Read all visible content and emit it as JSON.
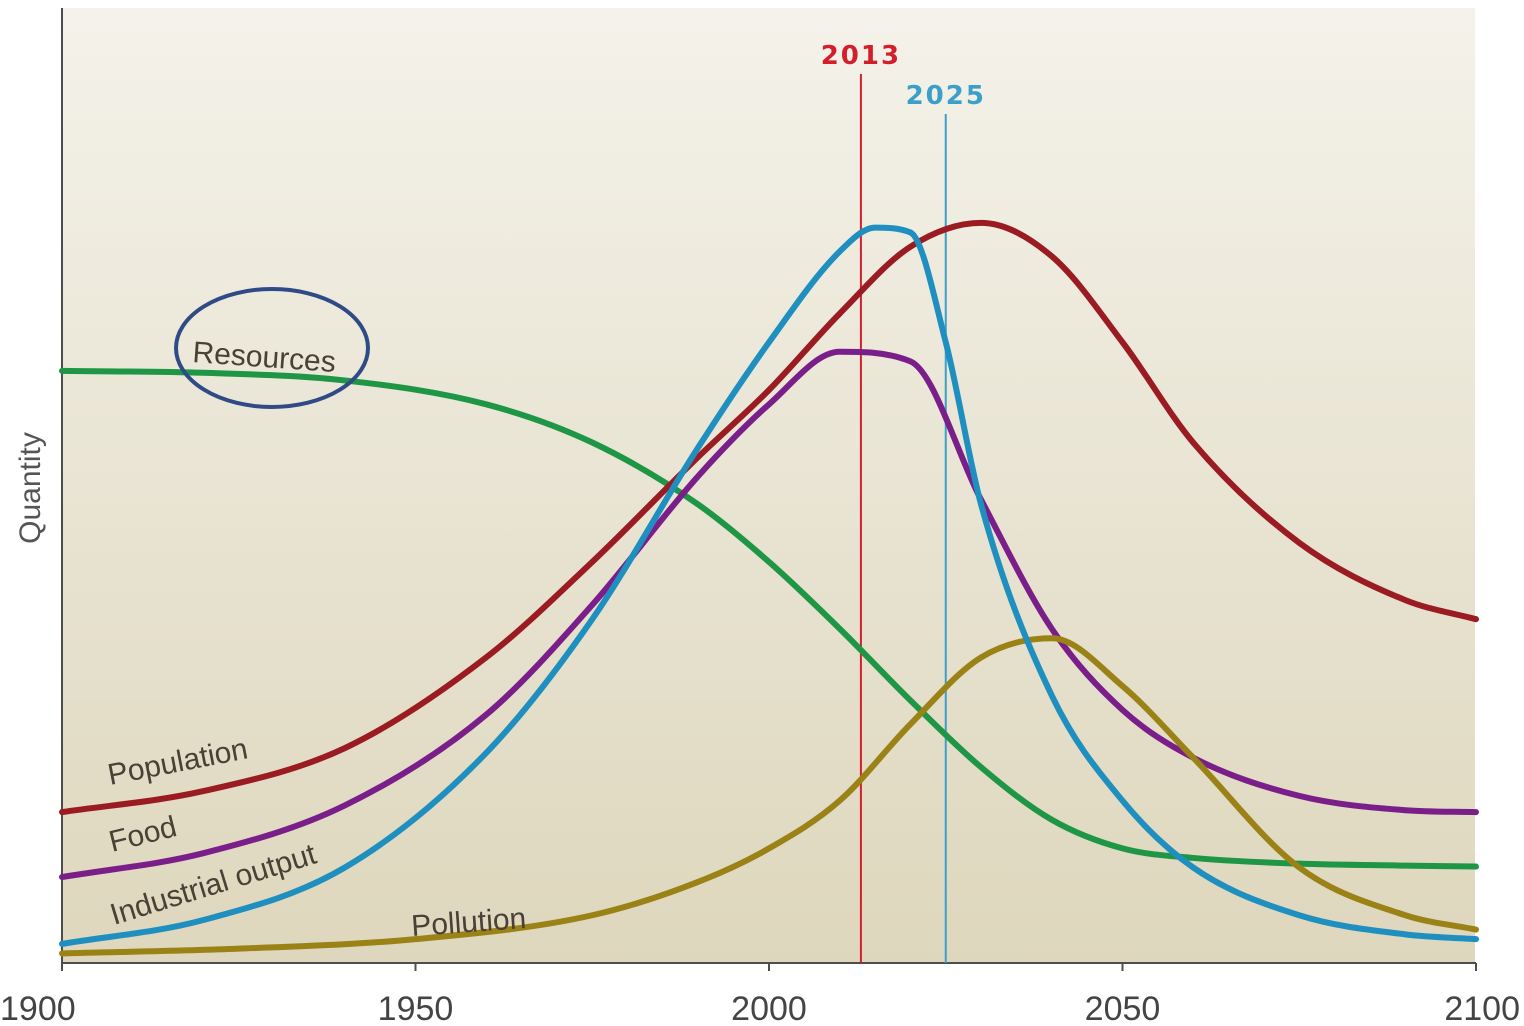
{
  "chart_data": {
    "type": "line",
    "title": "",
    "xlabel": "",
    "ylabel": "Quantity",
    "xlim": [
      1900,
      2100
    ],
    "ylim": [
      0,
      100
    ],
    "x_ticks": [
      "1900",
      "1950",
      "2000",
      "2050",
      "2100"
    ],
    "grid": false,
    "series": [
      {
        "name": "Resources",
        "color": "#1e9645",
        "x": [
          1900,
          1920,
          1940,
          1960,
          1975,
          1990,
          2000,
          2010,
          2020,
          2030,
          2040,
          2050,
          2060,
          2075,
          2090,
          2100
        ],
        "y": [
          62,
          61.8,
          61,
          58.5,
          54.5,
          48,
          42,
          35,
          27.5,
          20.5,
          15,
          12,
          11,
          10.4,
          10.2,
          10.1
        ]
      },
      {
        "name": "Population",
        "color": "#9b1b23",
        "x": [
          1900,
          1920,
          1940,
          1960,
          1975,
          1990,
          2000,
          2010,
          2020,
          2030,
          2040,
          2050,
          2060,
          2075,
          2090,
          2100
        ],
        "y": [
          15.8,
          18,
          22.5,
          32,
          42,
          53,
          60,
          68,
          75,
          77.5,
          74,
          65,
          54.5,
          44,
          38,
          36
        ]
      },
      {
        "name": "Food",
        "color": "#7a1f89",
        "x": [
          1900,
          1920,
          1940,
          1960,
          1975,
          1990,
          2000,
          2010,
          2020,
          2030,
          2040,
          2050,
          2060,
          2075,
          2090,
          2100
        ],
        "y": [
          9,
          11.5,
          16.5,
          26,
          37.5,
          51,
          58.5,
          64,
          63,
          48.5,
          35,
          26.5,
          21.5,
          17.5,
          16,
          15.8
        ]
      },
      {
        "name": "Industrial output",
        "color": "#1e8fbf",
        "x": [
          1900,
          1920,
          1940,
          1960,
          1975,
          1990,
          2000,
          2010,
          2015,
          2020,
          2025,
          2030,
          2040,
          2050,
          2060,
          2075,
          2090,
          2100
        ],
        "y": [
          2,
          4.5,
          10,
          22,
          36,
          54,
          65,
          74.5,
          77,
          76.5,
          65,
          48,
          28,
          17,
          10,
          5,
          3,
          2.5
        ]
      },
      {
        "name": "Pollution",
        "color": "#9a8216",
        "x": [
          1900,
          1925,
          1950,
          1975,
          1990,
          2000,
          2010,
          2020,
          2030,
          2040,
          2050,
          2060,
          2075,
          2090,
          2100
        ],
        "y": [
          1,
          1.5,
          2.5,
          5,
          8.5,
          12,
          17,
          25,
          32,
          34,
          29,
          21.5,
          10,
          5,
          3.5
        ]
      }
    ],
    "series_labels": [
      {
        "text": "Resources",
        "series": "Resources",
        "circled": true
      },
      {
        "text": "Population",
        "series": "Population"
      },
      {
        "text": "Food",
        "series": "Food"
      },
      {
        "text": "Industrial output",
        "series": "Industrial output"
      },
      {
        "text": "Pollution",
        "series": "Pollution"
      }
    ],
    "annotations": [
      {
        "label": "2013",
        "x": 2013,
        "color": "#d21f2b"
      },
      {
        "label": "2025",
        "x": 2025,
        "color": "#3a9fc9"
      }
    ],
    "highlight_color": "#2f4a86",
    "background_top": "#f4f2ea",
    "background_bottom": "#ded7bd"
  }
}
